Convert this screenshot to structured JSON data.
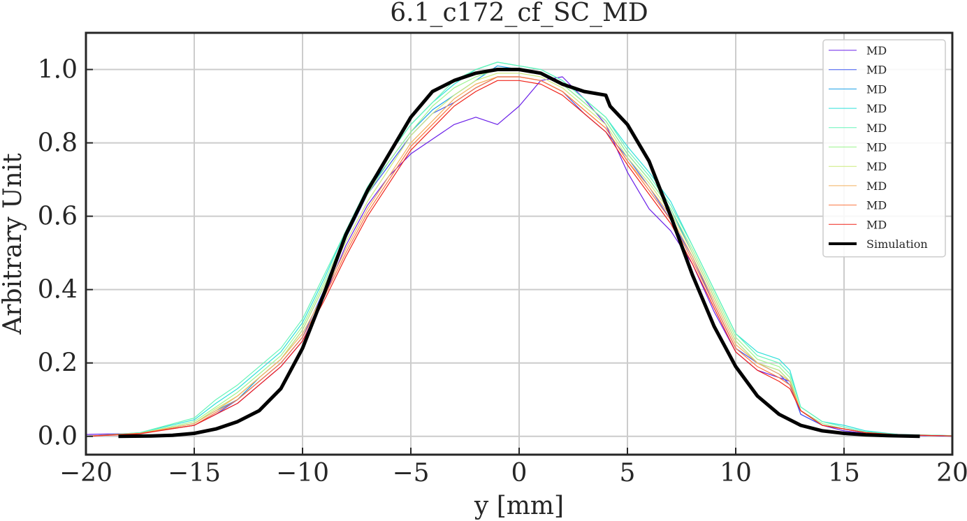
{
  "chart_data": {
    "type": "line",
    "title": "6.1_c172_cf_SC_MD",
    "xlabel": "y [mm]",
    "ylabel": "Arbitrary Unit",
    "xlim": [
      -20,
      20
    ],
    "ylim": [
      -0.05,
      1.1
    ],
    "xticks": [
      -20,
      -15,
      -10,
      -5,
      0,
      5,
      10,
      15,
      20
    ],
    "xtick_labels": [
      "−20",
      "−15",
      "−10",
      "−5",
      "0",
      "5",
      "10",
      "15",
      "20"
    ],
    "yticks": [
      0.0,
      0.2,
      0.4,
      0.6,
      0.8,
      1.0
    ],
    "ytick_labels": [
      "0.0",
      "0.2",
      "0.4",
      "0.6",
      "0.8",
      "1.0"
    ],
    "grid": true,
    "legend_position": "top-right",
    "legend": [
      {
        "label": "MD",
        "color": "#6a1fe8",
        "width": 1
      },
      {
        "label": "MD",
        "color": "#3f59f2",
        "width": 1
      },
      {
        "label": "MD",
        "color": "#1aa0e6",
        "width": 1
      },
      {
        "label": "MD",
        "color": "#2de0da",
        "width": 1
      },
      {
        "label": "MD",
        "color": "#66f5b8",
        "width": 1
      },
      {
        "label": "MD",
        "color": "#9df58f",
        "width": 1
      },
      {
        "label": "MD",
        "color": "#ccea7c",
        "width": 1
      },
      {
        "label": "MD",
        "color": "#f2b15e",
        "width": 1
      },
      {
        "label": "MD",
        "color": "#fb7640",
        "width": 1
      },
      {
        "label": "MD",
        "color": "#f0231a",
        "width": 1
      },
      {
        "label": "Simulation",
        "color": "#000000",
        "width": 4
      }
    ],
    "series": [
      {
        "name": "MD",
        "color": "#6a1fe8",
        "x": [
          -20,
          -17.5,
          -15,
          -14,
          -13,
          -12,
          -11,
          -10,
          -9,
          -8,
          -7,
          -6,
          -5,
          -4,
          -3,
          -2,
          -1,
          0,
          1,
          2,
          3,
          4,
          5,
          6,
          7,
          8,
          9,
          10,
          11,
          12,
          12.5,
          13,
          14,
          15,
          16,
          17.5,
          20
        ],
        "y": [
          0.005,
          0.008,
          0.03,
          0.06,
          0.09,
          0.14,
          0.19,
          0.26,
          0.38,
          0.52,
          0.63,
          0.71,
          0.77,
          0.81,
          0.85,
          0.87,
          0.85,
          0.9,
          0.97,
          0.98,
          0.92,
          0.85,
          0.72,
          0.62,
          0.56,
          0.47,
          0.34,
          0.23,
          0.18,
          0.16,
          0.15,
          0.06,
          0.03,
          0.015,
          0.008,
          0.003,
          0.0
        ]
      },
      {
        "name": "MD",
        "color": "#3f59f2",
        "x": [
          -20,
          -17.5,
          -15,
          -14,
          -13,
          -12,
          -11,
          -10,
          -9,
          -8,
          -7,
          -6,
          -5,
          -4,
          -3,
          -2,
          -1,
          0,
          1,
          2,
          3,
          4,
          5,
          6,
          7,
          8,
          9,
          10,
          11,
          12,
          12.5,
          13,
          14,
          15,
          16,
          17.5,
          20
        ],
        "y": [
          0.0,
          0.008,
          0.03,
          0.06,
          0.1,
          0.15,
          0.2,
          0.27,
          0.4,
          0.54,
          0.66,
          0.74,
          0.82,
          0.88,
          0.91,
          0.95,
          0.98,
          0.98,
          0.97,
          0.94,
          0.88,
          0.83,
          0.76,
          0.68,
          0.59,
          0.49,
          0.36,
          0.24,
          0.2,
          0.17,
          0.14,
          0.06,
          0.03,
          0.02,
          0.01,
          0.005,
          0.0
        ]
      },
      {
        "name": "MD",
        "color": "#1aa0e6",
        "x": [
          -20,
          -17.5,
          -15,
          -14,
          -13,
          -12,
          -11,
          -10,
          -9,
          -8,
          -7,
          -6,
          -5,
          -4,
          -3,
          -2,
          -1,
          0,
          1,
          2,
          3,
          4,
          5,
          6,
          7,
          8,
          9,
          10,
          11,
          12,
          12.5,
          13,
          14,
          15,
          16,
          17.5,
          20
        ],
        "y": [
          0.0,
          0.008,
          0.035,
          0.07,
          0.1,
          0.16,
          0.21,
          0.29,
          0.41,
          0.54,
          0.67,
          0.75,
          0.83,
          0.89,
          0.93,
          0.97,
          1.01,
          1.0,
          0.99,
          0.96,
          0.91,
          0.86,
          0.77,
          0.7,
          0.62,
          0.5,
          0.38,
          0.26,
          0.2,
          0.18,
          0.15,
          0.07,
          0.03,
          0.02,
          0.01,
          0.004,
          0.002
        ]
      },
      {
        "name": "MD",
        "color": "#2de0da",
        "x": [
          -20,
          -17.5,
          -15,
          -14,
          -13,
          -12,
          -11,
          -10,
          -9,
          -8,
          -7,
          -6,
          -5,
          -4,
          -3,
          -2,
          -1,
          0,
          1,
          2,
          3,
          4,
          5,
          6,
          7,
          8,
          9,
          10,
          11,
          12,
          12.5,
          13,
          14,
          15,
          16,
          17.5,
          20
        ],
        "y": [
          0.0,
          0.01,
          0.045,
          0.09,
          0.13,
          0.18,
          0.23,
          0.31,
          0.43,
          0.56,
          0.68,
          0.77,
          0.85,
          0.91,
          0.96,
          1.0,
          1.02,
          1.01,
          1.0,
          0.97,
          0.92,
          0.87,
          0.79,
          0.72,
          0.64,
          0.52,
          0.4,
          0.28,
          0.23,
          0.21,
          0.18,
          0.08,
          0.04,
          0.03,
          0.015,
          0.005,
          0.002
        ]
      },
      {
        "name": "MD",
        "color": "#66f5b8",
        "x": [
          -20,
          -17.5,
          -15,
          -14,
          -13,
          -12,
          -11,
          -10,
          -9,
          -8,
          -7,
          -6,
          -5,
          -4,
          -3,
          -2,
          -1,
          0,
          1,
          2,
          3,
          4,
          5,
          6,
          7,
          8,
          9,
          10,
          11,
          12,
          12.5,
          13,
          14,
          15,
          16,
          17.5,
          20
        ],
        "y": [
          0.0,
          0.01,
          0.05,
          0.1,
          0.14,
          0.19,
          0.24,
          0.32,
          0.44,
          0.56,
          0.68,
          0.77,
          0.85,
          0.91,
          0.97,
          1.0,
          1.02,
          1.01,
          1.0,
          0.97,
          0.92,
          0.87,
          0.78,
          0.71,
          0.63,
          0.52,
          0.4,
          0.28,
          0.22,
          0.2,
          0.17,
          0.08,
          0.04,
          0.025,
          0.012,
          0.005,
          0.002
        ]
      },
      {
        "name": "MD",
        "color": "#9df58f",
        "x": [
          -20,
          -17.5,
          -15,
          -14,
          -13,
          -12,
          -11,
          -10,
          -9,
          -8,
          -7,
          -6,
          -5,
          -4,
          -3,
          -2,
          -1,
          0,
          1,
          2,
          3,
          4,
          5,
          6,
          7,
          8,
          9,
          10,
          11,
          12,
          12.5,
          13,
          14,
          15,
          16,
          17.5,
          20
        ],
        "y": [
          0.0,
          0.008,
          0.04,
          0.08,
          0.12,
          0.17,
          0.22,
          0.3,
          0.42,
          0.55,
          0.66,
          0.75,
          0.83,
          0.9,
          0.95,
          0.98,
          1.0,
          1.0,
          0.99,
          0.96,
          0.91,
          0.86,
          0.77,
          0.7,
          0.62,
          0.51,
          0.39,
          0.27,
          0.21,
          0.19,
          0.16,
          0.07,
          0.035,
          0.02,
          0.01,
          0.004,
          0.001
        ]
      },
      {
        "name": "MD",
        "color": "#ccea7c",
        "x": [
          -20,
          -17.5,
          -15,
          -14,
          -13,
          -12,
          -11,
          -10,
          -9,
          -8,
          -7,
          -6,
          -5,
          -4,
          -3,
          -2,
          -1,
          0,
          1,
          2,
          3,
          4,
          5,
          6,
          7,
          8,
          9,
          10,
          11,
          12,
          12.5,
          13,
          14,
          15,
          16,
          17.5,
          20
        ],
        "y": [
          0.0,
          0.008,
          0.035,
          0.075,
          0.11,
          0.16,
          0.21,
          0.29,
          0.41,
          0.53,
          0.64,
          0.73,
          0.82,
          0.88,
          0.93,
          0.97,
          0.99,
          0.99,
          0.98,
          0.95,
          0.9,
          0.85,
          0.76,
          0.69,
          0.61,
          0.5,
          0.38,
          0.26,
          0.2,
          0.18,
          0.15,
          0.07,
          0.03,
          0.02,
          0.01,
          0.004,
          0.001
        ]
      },
      {
        "name": "MD",
        "color": "#f2b15e",
        "x": [
          -20,
          -17.5,
          -15,
          -14,
          -13,
          -12,
          -11,
          -10,
          -9,
          -8,
          -7,
          -6,
          -5,
          -4,
          -3,
          -2,
          -1,
          0,
          1,
          2,
          3,
          4,
          5,
          6,
          7,
          8,
          9,
          10,
          11,
          12,
          12.5,
          13,
          14,
          15,
          16,
          17.5,
          20
        ],
        "y": [
          0.0,
          0.008,
          0.035,
          0.07,
          0.11,
          0.16,
          0.21,
          0.28,
          0.39,
          0.51,
          0.62,
          0.71,
          0.8,
          0.86,
          0.92,
          0.96,
          0.98,
          0.98,
          0.97,
          0.94,
          0.89,
          0.84,
          0.75,
          0.68,
          0.6,
          0.49,
          0.37,
          0.25,
          0.2,
          0.17,
          0.15,
          0.07,
          0.03,
          0.02,
          0.01,
          0.004,
          0.001
        ]
      },
      {
        "name": "MD",
        "color": "#fb7640",
        "x": [
          -20,
          -17.5,
          -15,
          -14,
          -13,
          -12,
          -11,
          -10,
          -9,
          -8,
          -7,
          -6,
          -5,
          -4,
          -3,
          -2,
          -1,
          0,
          1,
          2,
          3,
          4,
          5,
          6,
          7,
          8,
          9,
          10,
          11,
          12,
          12.5,
          13,
          14,
          15,
          16,
          17.5,
          20
        ],
        "y": [
          0.0,
          0.008,
          0.03,
          0.065,
          0.1,
          0.15,
          0.2,
          0.27,
          0.38,
          0.5,
          0.61,
          0.7,
          0.79,
          0.85,
          0.91,
          0.95,
          0.98,
          0.98,
          0.97,
          0.94,
          0.89,
          0.84,
          0.75,
          0.67,
          0.59,
          0.48,
          0.36,
          0.24,
          0.19,
          0.16,
          0.14,
          0.07,
          0.03,
          0.02,
          0.01,
          0.004,
          0.001
        ]
      },
      {
        "name": "MD",
        "color": "#f0231a",
        "x": [
          -20,
          -17.5,
          -15,
          -14,
          -13,
          -12,
          -11,
          -10,
          -9,
          -8,
          -7,
          -6,
          -5,
          -4,
          -3,
          -2,
          -1,
          0,
          1,
          2,
          3,
          4,
          5,
          6,
          7,
          8,
          9,
          10,
          11,
          12,
          12.5,
          13,
          14,
          15,
          16,
          17.5,
          20
        ],
        "y": [
          0.0,
          0.007,
          0.03,
          0.06,
          0.09,
          0.14,
          0.19,
          0.26,
          0.37,
          0.49,
          0.6,
          0.69,
          0.78,
          0.84,
          0.9,
          0.94,
          0.97,
          0.97,
          0.96,
          0.93,
          0.88,
          0.83,
          0.74,
          0.66,
          0.58,
          0.47,
          0.35,
          0.23,
          0.18,
          0.15,
          0.13,
          0.07,
          0.03,
          0.02,
          0.01,
          0.004,
          0.001
        ]
      },
      {
        "name": "Simulation",
        "color": "#000000",
        "x": [
          -18.5,
          -17,
          -16,
          -15,
          -14,
          -13,
          -12,
          -11,
          -10,
          -9,
          -8,
          -7,
          -6,
          -5,
          -4,
          -3,
          -2,
          -1,
          0,
          1,
          2,
          3,
          4,
          4.2,
          5,
          6,
          7,
          8,
          9,
          10,
          11,
          12,
          13,
          14,
          15,
          16,
          17,
          18.5
        ],
        "y": [
          0.0,
          0.001,
          0.003,
          0.008,
          0.02,
          0.04,
          0.07,
          0.13,
          0.24,
          0.39,
          0.55,
          0.67,
          0.77,
          0.87,
          0.94,
          0.97,
          0.99,
          1.0,
          1.0,
          0.99,
          0.96,
          0.94,
          0.93,
          0.9,
          0.85,
          0.75,
          0.6,
          0.44,
          0.3,
          0.19,
          0.11,
          0.06,
          0.03,
          0.015,
          0.008,
          0.004,
          0.002,
          0.0
        ]
      }
    ]
  }
}
